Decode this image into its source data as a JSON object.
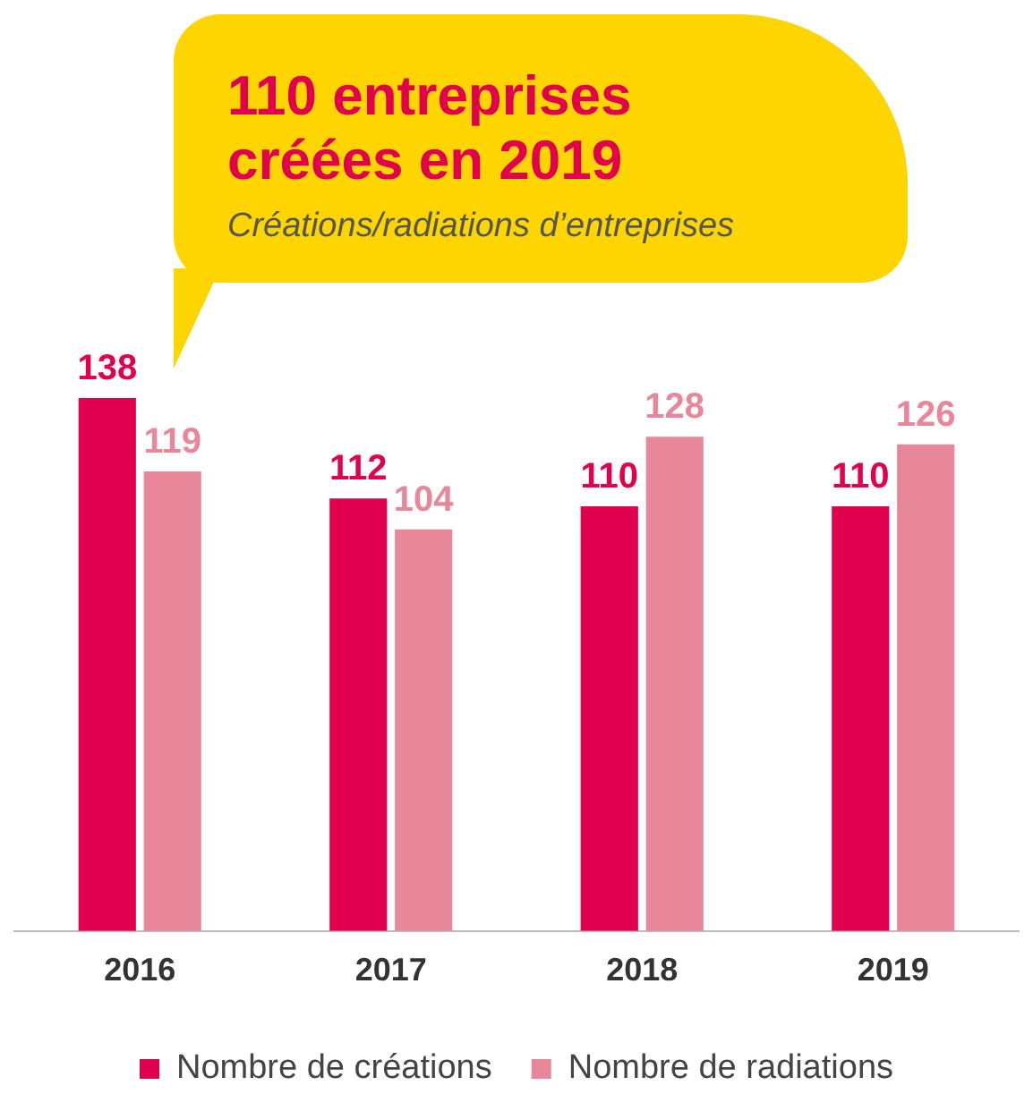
{
  "chart_data": {
    "type": "bar",
    "title": "110 entreprises créées en 2019",
    "subtitle": "Créations/radiations d’entreprises",
    "categories": [
      "2016",
      "2017",
      "2018",
      "2019"
    ],
    "series": [
      {
        "name": "Nombre de créations",
        "color": "#e0004d",
        "values": [
          138,
          112,
          110,
          110
        ]
      },
      {
        "name": "Nombre de radiations",
        "color": "#e8879a",
        "values": [
          119,
          104,
          128,
          126
        ]
      }
    ],
    "data_labels": true,
    "legend": "bottom"
  }
}
